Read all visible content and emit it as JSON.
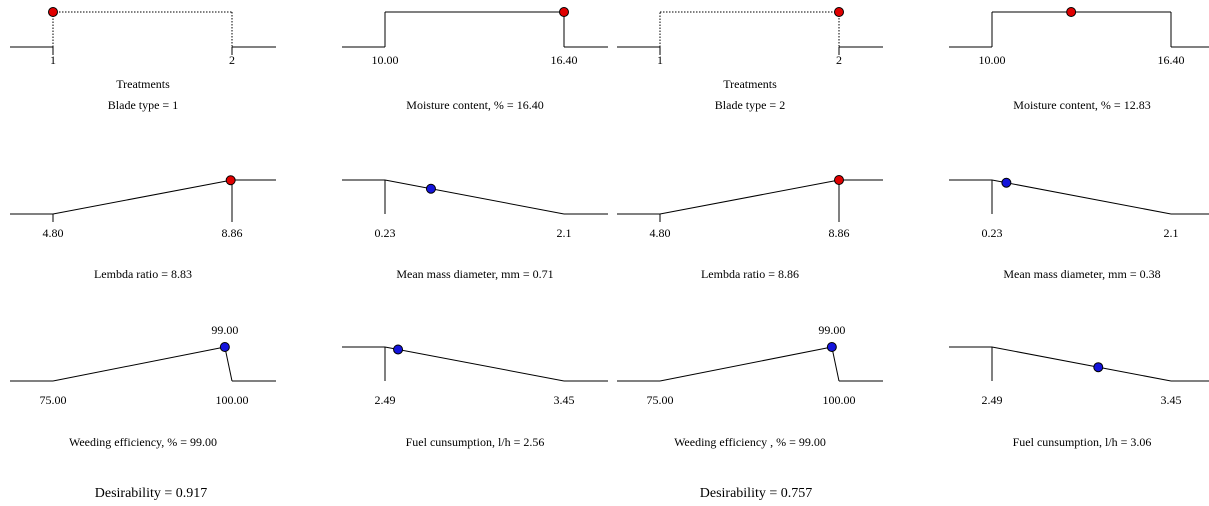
{
  "colors": {
    "red": "#e00000",
    "blue": "#1414dc",
    "line": "#000000"
  },
  "panels": [
    {
      "desirability_label": "Desirability = 0.917",
      "ramps": [
        {
          "type": "factor",
          "lo_label": "1",
          "hi_label": "2",
          "axis_title": "Treatments",
          "caption": "Blade type = 1",
          "marker": "red",
          "value": 1,
          "lo": 1,
          "hi": 2
        },
        {
          "type": "factor",
          "lo_label": "10.00",
          "hi_label": "16.40",
          "axis_title": "",
          "caption": "Moisture content, % = 16.40",
          "marker": "red",
          "value": 16.4,
          "lo": 10.0,
          "hi": 16.4
        },
        {
          "type": "rise",
          "lo_label": "4.80",
          "hi_label": "8.86",
          "axis_title": "",
          "caption": "Lembda ratio = 8.83",
          "marker": "red",
          "value": 8.83,
          "lo": 4.8,
          "hi": 8.86
        },
        {
          "type": "fall",
          "lo_label": "0.23",
          "hi_label": "2.1",
          "axis_title": "",
          "caption": "Mean mass diameter, mm = 0.71",
          "marker": "blue",
          "value": 0.71,
          "lo": 0.23,
          "hi": 2.1
        },
        {
          "type": "target",
          "lo_label": "75.00",
          "hi_label": "100.00",
          "target_label": "99.00",
          "axis_title": "",
          "caption": "Weeding efficiency, % = 99.00",
          "marker": "blue",
          "value": 99.0,
          "lo": 75.0,
          "hi": 100.0,
          "target": 99.0
        },
        {
          "type": "fall",
          "lo_label": "2.49",
          "hi_label": "3.45",
          "axis_title": "",
          "caption": "Fuel cunsumption, l/h = 2.56",
          "marker": "blue",
          "value": 2.56,
          "lo": 2.49,
          "hi": 3.45
        }
      ]
    },
    {
      "desirability_label": "Desirability = 0.757",
      "ramps": [
        {
          "type": "factor",
          "lo_label": "1",
          "hi_label": "2",
          "axis_title": "Treatments",
          "caption": "Blade type = 2",
          "marker": "red",
          "value": 2,
          "lo": 1,
          "hi": 2
        },
        {
          "type": "factor",
          "lo_label": "10.00",
          "hi_label": "16.40",
          "axis_title": "",
          "caption": "Moisture content, % = 12.83",
          "marker": "red",
          "value": 12.83,
          "lo": 10.0,
          "hi": 16.4
        },
        {
          "type": "rise",
          "lo_label": "4.80",
          "hi_label": "8.86",
          "axis_title": "",
          "caption": "Lembda ratio = 8.86",
          "marker": "red",
          "value": 8.86,
          "lo": 4.8,
          "hi": 8.86
        },
        {
          "type": "fall",
          "lo_label": "0.23",
          "hi_label": "2.1",
          "axis_title": "",
          "caption": "Mean mass diameter, mm = 0.38",
          "marker": "blue",
          "value": 0.38,
          "lo": 0.23,
          "hi": 2.1
        },
        {
          "type": "target",
          "lo_label": "75.00",
          "hi_label": "100.00",
          "target_label": "99.00",
          "axis_title": "",
          "caption": "Weeding efficiency , % = 99.00",
          "marker": "blue",
          "value": 99.0,
          "lo": 75.0,
          "hi": 100.0,
          "target": 99.0
        },
        {
          "type": "fall",
          "lo_label": "2.49",
          "hi_label": "3.45",
          "axis_title": "",
          "caption": "Fuel cunsumption, l/h = 3.06",
          "marker": "blue",
          "value": 3.06,
          "lo": 2.49,
          "hi": 3.45
        }
      ]
    }
  ],
  "chart_data": [
    {
      "type": "line",
      "title": "",
      "desirability": 0.917,
      "factors": [
        {
          "name": "Blade type",
          "range": [
            1,
            2
          ],
          "setting": 1
        },
        {
          "name": "Moisture content, %",
          "range": [
            10.0,
            16.4
          ],
          "setting": 16.4
        }
      ],
      "responses": [
        {
          "name": "Lembda ratio",
          "goal": "maximize",
          "range": [
            4.8,
            8.86
          ],
          "value": 8.83
        },
        {
          "name": "Mean mass diameter, mm",
          "goal": "minimize",
          "range": [
            0.23,
            2.1
          ],
          "value": 0.71
        },
        {
          "name": "Weeding efficiency, %",
          "goal": "target",
          "range": [
            75.0,
            100.0
          ],
          "target": 99.0,
          "value": 99.0
        },
        {
          "name": "Fuel cunsumption, l/h",
          "goal": "minimize",
          "range": [
            2.49,
            3.45
          ],
          "value": 2.56
        }
      ]
    },
    {
      "type": "line",
      "title": "",
      "desirability": 0.757,
      "factors": [
        {
          "name": "Blade type",
          "range": [
            1,
            2
          ],
          "setting": 2
        },
        {
          "name": "Moisture content, %",
          "range": [
            10.0,
            16.4
          ],
          "setting": 12.83
        }
      ],
      "responses": [
        {
          "name": "Lembda ratio",
          "goal": "maximize",
          "range": [
            4.8,
            8.86
          ],
          "value": 8.86
        },
        {
          "name": "Mean mass diameter, mm",
          "goal": "minimize",
          "range": [
            0.23,
            2.1
          ],
          "value": 0.38
        },
        {
          "name": "Weeding efficiency, %",
          "goal": "target",
          "range": [
            75.0,
            100.0
          ],
          "target": 99.0,
          "value": 99.0
        },
        {
          "name": "Fuel cunsumption, l/h",
          "goal": "minimize",
          "range": [
            2.49,
            3.45
          ],
          "value": 3.06
        }
      ]
    }
  ]
}
